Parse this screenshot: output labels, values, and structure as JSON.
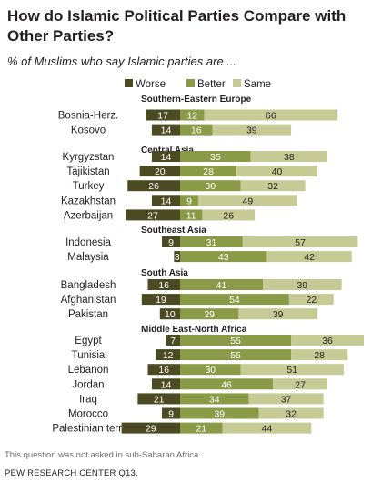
{
  "header": {
    "title": "How do Islamic Political Parties Compare with Other Parties?",
    "subtitle": "% of Muslims who say Islamic parties are ..."
  },
  "footer": {
    "note": "This question was not asked in sub-Saharan Africa.",
    "source": "PEW RESEARCH CENTER Q13."
  },
  "colors": {
    "worse": "#4b4a22",
    "better": "#8a9a47",
    "same": "#c6cb95"
  },
  "chart_data": {
    "type": "bar",
    "orientation": "horizontal",
    "stacked": true,
    "legend_position": "top",
    "series": [
      {
        "name": "Worse",
        "values": [
          17,
          14,
          14,
          20,
          26,
          14,
          27,
          9,
          3,
          16,
          19,
          10,
          7,
          12,
          16,
          14,
          21,
          9,
          29
        ]
      },
      {
        "name": "Better",
        "values": [
          12,
          16,
          35,
          28,
          30,
          9,
          11,
          31,
          43,
          41,
          54,
          29,
          55,
          55,
          30,
          46,
          34,
          39,
          21
        ]
      },
      {
        "name": "Same",
        "values": [
          66,
          39,
          38,
          40,
          32,
          49,
          26,
          57,
          42,
          39,
          22,
          39,
          36,
          28,
          51,
          27,
          37,
          32,
          44
        ]
      }
    ],
    "categories": [
      "Bosnia-Herz.",
      "Kosovo",
      "Kyrgyzstan",
      "Tajikistan",
      "Turkey",
      "Kazakhstan",
      "Azerbaijan",
      "Indonesia",
      "Malaysia",
      "Bangladesh",
      "Afghanistan",
      "Pakistan",
      "Egypt",
      "Tunisia",
      "Lebanon",
      "Jordan",
      "Iraq",
      "Morocco",
      "Palestinian terr."
    ],
    "groups": [
      {
        "label": "Southern-Eastern  Europe",
        "rows": [
          0,
          1
        ]
      },
      {
        "label": "Central Asia",
        "rows": [
          2,
          3,
          4,
          5,
          6
        ]
      },
      {
        "label": "Southeast  Asia",
        "rows": [
          7,
          8
        ]
      },
      {
        "label": "South Asia",
        "rows": [
          9,
          10,
          11
        ]
      },
      {
        "label": "Middle East-North  Africa",
        "rows": [
          12,
          13,
          14,
          15,
          16,
          17,
          18
        ]
      }
    ]
  }
}
